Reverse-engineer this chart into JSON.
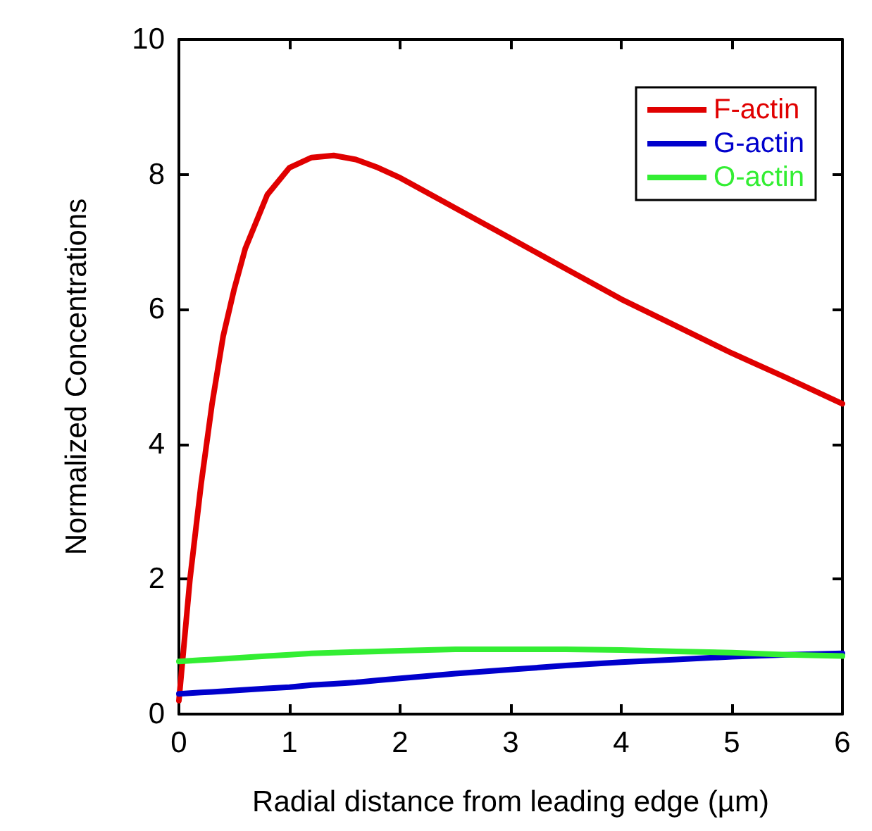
{
  "chart_data": {
    "type": "line",
    "xlabel": "Radial distance from leading edge (µm)",
    "ylabel": "Normalized Concentrations",
    "x": [
      0,
      0.1,
      0.2,
      0.3,
      0.4,
      0.5,
      0.6,
      0.8,
      1.0,
      1.2,
      1.4,
      1.6,
      1.8,
      2.0,
      2.5,
      3.0,
      3.5,
      4.0,
      4.5,
      5.0,
      5.5,
      6.0
    ],
    "series": [
      {
        "name": "F-actin",
        "color": "#e00000",
        "values": [
          0.2,
          2.0,
          3.4,
          4.6,
          5.6,
          6.3,
          6.9,
          7.7,
          8.1,
          8.25,
          8.28,
          8.22,
          8.1,
          7.95,
          7.5,
          7.05,
          6.6,
          6.15,
          5.75,
          5.35,
          4.98,
          4.6
        ]
      },
      {
        "name": "G-actin",
        "color": "#0000cc",
        "values": [
          0.3,
          0.31,
          0.32,
          0.33,
          0.34,
          0.35,
          0.36,
          0.38,
          0.4,
          0.43,
          0.45,
          0.47,
          0.5,
          0.53,
          0.6,
          0.66,
          0.72,
          0.77,
          0.81,
          0.85,
          0.88,
          0.9
        ]
      },
      {
        "name": "O-actin",
        "color": "#33ee33",
        "values": [
          0.78,
          0.79,
          0.8,
          0.81,
          0.82,
          0.83,
          0.84,
          0.86,
          0.88,
          0.9,
          0.91,
          0.92,
          0.93,
          0.94,
          0.96,
          0.96,
          0.96,
          0.95,
          0.93,
          0.91,
          0.88,
          0.86
        ]
      }
    ],
    "xlim": [
      0,
      6
    ],
    "xticks": [
      0,
      1,
      2,
      3,
      4,
      5,
      6
    ],
    "ylim": [
      0,
      10
    ],
    "yticks": [
      0,
      2,
      4,
      6,
      8,
      10
    ],
    "legend": "top right",
    "grid": false,
    "marker": "none",
    "line_style": "solid"
  }
}
